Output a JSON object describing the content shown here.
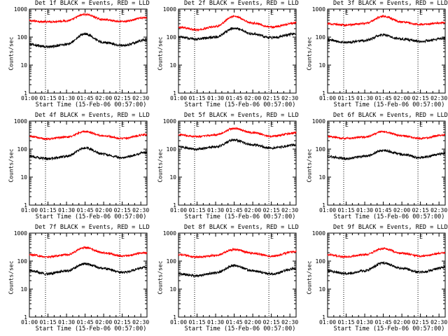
{
  "chart_data": [
    {
      "type": "line",
      "title": "Det 1f BLACK = Events, RED = LLD",
      "xlabel": "Start Time (15-Feb-06 00:57:00)",
      "ylabel": "Counts/sec",
      "xticks": [
        "01:00",
        "01:15",
        "01:30",
        "01:45",
        "02:00",
        "02:15",
        "02:30"
      ],
      "yticks": [
        "1",
        "10",
        "100",
        "1000"
      ],
      "ylim": [
        1,
        1000
      ],
      "yscale": "log",
      "xlim": [
        "01:00",
        "02:35"
      ],
      "markers": [
        "01:13",
        "02:13"
      ],
      "marker_labels": [
        "E",
        "E"
      ],
      "series": [
        {
          "name": "LLD",
          "color": "#ff0000",
          "x": [
            "01:00",
            "01:15",
            "01:30",
            "01:45",
            "02:00",
            "02:15",
            "02:35"
          ],
          "values": [
            380,
            350,
            380,
            650,
            420,
            360,
            500
          ]
        },
        {
          "name": "Events",
          "color": "#000000",
          "x": [
            "01:00",
            "01:15",
            "01:30",
            "01:45",
            "02:00",
            "02:15",
            "02:35"
          ],
          "values": [
            55,
            45,
            55,
            130,
            65,
            50,
            80
          ]
        }
      ]
    },
    {
      "type": "line",
      "title": "Det 2f BLACK = Events, RED = LLD",
      "xlabel": "Start Time (15-Feb-06 00:57:00)",
      "ylabel": "Counts/sec",
      "xticks": [
        "01:00",
        "01:15",
        "01:30",
        "01:45",
        "02:00",
        "02:15",
        "02:30"
      ],
      "yticks": [
        "1",
        "10",
        "100",
        "1000"
      ],
      "ylim": [
        1,
        1000
      ],
      "yscale": "log",
      "xlim": [
        "01:00",
        "02:35"
      ],
      "markers": [
        "01:13",
        "02:13"
      ],
      "marker_labels": [
        "E",
        "E"
      ],
      "series": [
        {
          "name": "LLD",
          "color": "#ff0000",
          "x": [
            "01:00",
            "01:15",
            "01:30",
            "01:45",
            "02:00",
            "02:15",
            "02:35"
          ],
          "values": [
            230,
            180,
            240,
            550,
            320,
            230,
            320
          ]
        },
        {
          "name": "Events",
          "color": "#000000",
          "x": [
            "01:00",
            "01:15",
            "01:30",
            "01:45",
            "02:00",
            "02:15",
            "02:35"
          ],
          "values": [
            100,
            85,
            100,
            210,
            130,
            95,
            130
          ]
        }
      ]
    },
    {
      "type": "line",
      "title": "Det 3f BLACK = Events, RED = LLD",
      "xlabel": "Start Time (15-Feb-06 00:57:00)",
      "ylabel": "Counts/sec",
      "xticks": [
        "01:00",
        "01:15",
        "01:30",
        "01:45",
        "02:00",
        "02:15",
        "02:30"
      ],
      "yticks": [
        "1",
        "10",
        "100",
        "1000"
      ],
      "ylim": [
        1,
        1000
      ],
      "yscale": "log",
      "xlim": [
        "01:00",
        "02:35"
      ],
      "markers": [
        "01:13",
        "02:13"
      ],
      "marker_labels": [
        "E",
        "E"
      ],
      "series": [
        {
          "name": "LLD",
          "color": "#ff0000",
          "x": [
            "01:00",
            "01:15",
            "01:30",
            "01:45",
            "02:00",
            "02:15",
            "02:35"
          ],
          "values": [
            300,
            270,
            310,
            550,
            350,
            280,
            330
          ]
        },
        {
          "name": "Events",
          "color": "#000000",
          "x": [
            "01:00",
            "01:15",
            "01:30",
            "01:45",
            "02:00",
            "02:15",
            "02:35"
          ],
          "values": [
            80,
            65,
            75,
            120,
            85,
            70,
            90
          ]
        }
      ]
    },
    {
      "type": "line",
      "title": "Det 4f BLACK = Events, RED = LLD",
      "xlabel": "Start Time (15-Feb-06 00:57:00)",
      "ylabel": "Counts/sec",
      "xticks": [
        "01:00",
        "01:15",
        "01:30",
        "01:45",
        "02:00",
        "02:15",
        "02:30"
      ],
      "yticks": [
        "1",
        "10",
        "100",
        "1000"
      ],
      "ylim": [
        1,
        1000
      ],
      "yscale": "log",
      "xlim": [
        "01:00",
        "02:35"
      ],
      "markers": [
        "01:13",
        "02:13"
      ],
      "marker_labels": [
        "E",
        "E"
      ],
      "series": [
        {
          "name": "LLD",
          "color": "#ff0000",
          "x": [
            "01:00",
            "01:15",
            "01:30",
            "01:45",
            "02:00",
            "02:15",
            "02:35"
          ],
          "values": [
            280,
            230,
            270,
            420,
            300,
            240,
            330
          ]
        },
        {
          "name": "Events",
          "color": "#000000",
          "x": [
            "01:00",
            "01:15",
            "01:30",
            "01:45",
            "02:00",
            "02:15",
            "02:35"
          ],
          "values": [
            55,
            45,
            55,
            110,
            65,
            50,
            75
          ]
        }
      ]
    },
    {
      "type": "line",
      "title": "Det 5f BLACK = Events, RED = LLD",
      "xlabel": "Start Time (15-Feb-06 00:57:00)",
      "ylabel": "Counts/sec",
      "xticks": [
        "01:00",
        "01:15",
        "01:30",
        "01:45",
        "02:00",
        "02:15",
        "02:30"
      ],
      "yticks": [
        "1",
        "10",
        "100",
        "1000"
      ],
      "ylim": [
        1,
        1000
      ],
      "yscale": "log",
      "xlim": [
        "01:00",
        "02:35"
      ],
      "markers": [
        "01:13",
        "02:13"
      ],
      "marker_labels": [
        "E",
        "E"
      ],
      "series": [
        {
          "name": "LLD",
          "color": "#ff0000",
          "x": [
            "01:00",
            "01:15",
            "01:30",
            "01:45",
            "02:00",
            "02:15",
            "02:35"
          ],
          "values": [
            330,
            280,
            320,
            550,
            380,
            290,
            380
          ]
        },
        {
          "name": "Events",
          "color": "#000000",
          "x": [
            "01:00",
            "01:15",
            "01:30",
            "01:45",
            "02:00",
            "02:15",
            "02:35"
          ],
          "values": [
            120,
            100,
            120,
            210,
            140,
            110,
            140
          ]
        }
      ]
    },
    {
      "type": "line",
      "title": "Det 6f BLACK = Events, RED = LLD",
      "xlabel": "Start Time (15-Feb-06 00:57:00)",
      "ylabel": "Counts/sec",
      "xticks": [
        "01:00",
        "01:15",
        "01:30",
        "01:45",
        "02:00",
        "02:15",
        "02:30"
      ],
      "yticks": [
        "1",
        "10",
        "100",
        "1000"
      ],
      "ylim": [
        1,
        1000
      ],
      "yscale": "log",
      "xlim": [
        "01:00",
        "02:35"
      ],
      "markers": [
        "01:13",
        "02:13"
      ],
      "marker_labels": [
        "E",
        "E"
      ],
      "series": [
        {
          "name": "LLD",
          "color": "#ff0000",
          "x": [
            "01:00",
            "01:15",
            "01:30",
            "01:45",
            "02:00",
            "02:15",
            "02:35"
          ],
          "values": [
            280,
            240,
            270,
            420,
            300,
            240,
            320
          ]
        },
        {
          "name": "Events",
          "color": "#000000",
          "x": [
            "01:00",
            "01:15",
            "01:30",
            "01:45",
            "02:00",
            "02:15",
            "02:35"
          ],
          "values": [
            55,
            45,
            55,
            90,
            65,
            50,
            70
          ]
        }
      ]
    },
    {
      "type": "line",
      "title": "Det 7f BLACK = Events, RED = LLD",
      "xlabel": "Start Time (15-Feb-06 00:57:00)",
      "ylabel": "Counts/sec",
      "xticks": [
        "01:00",
        "01:15",
        "01:30",
        "01:45",
        "02:00",
        "02:15",
        "02:30"
      ],
      "yticks": [
        "1",
        "10",
        "100",
        "1000"
      ],
      "ylim": [
        1,
        1000
      ],
      "yscale": "log",
      "xlim": [
        "01:00",
        "02:35"
      ],
      "markers": [
        "01:13",
        "02:13"
      ],
      "marker_labels": [
        "E",
        "E"
      ],
      "series": [
        {
          "name": "LLD",
          "color": "#ff0000",
          "x": [
            "01:00",
            "01:15",
            "01:30",
            "01:45",
            "02:00",
            "02:15",
            "02:35"
          ],
          "values": [
            170,
            140,
            170,
            300,
            200,
            150,
            200
          ]
        },
        {
          "name": "Events",
          "color": "#000000",
          "x": [
            "01:00",
            "01:15",
            "01:30",
            "01:45",
            "02:00",
            "02:15",
            "02:35"
          ],
          "values": [
            45,
            35,
            45,
            80,
            55,
            40,
            60
          ]
        }
      ]
    },
    {
      "type": "line",
      "title": "Det 8f BLACK = Events, RED = LLD",
      "xlabel": "Start Time (15-Feb-06 00:57:00)",
      "ylabel": "Counts/sec",
      "xticks": [
        "01:00",
        "01:15",
        "01:30",
        "01:45",
        "02:00",
        "02:15",
        "02:30"
      ],
      "yticks": [
        "1",
        "10",
        "100",
        "1000"
      ],
      "ylim": [
        1,
        1000
      ],
      "yscale": "log",
      "xlim": [
        "01:00",
        "02:35"
      ],
      "markers": [
        "01:13",
        "02:13"
      ],
      "marker_labels": [
        "E",
        "E"
      ],
      "series": [
        {
          "name": "LLD",
          "color": "#ff0000",
          "x": [
            "01:00",
            "01:15",
            "01:30",
            "01:45",
            "02:00",
            "02:15",
            "02:35"
          ],
          "values": [
            170,
            140,
            160,
            260,
            190,
            150,
            220
          ]
        },
        {
          "name": "Events",
          "color": "#000000",
          "x": [
            "01:00",
            "01:15",
            "01:30",
            "01:45",
            "02:00",
            "02:15",
            "02:35"
          ],
          "values": [
            35,
            30,
            38,
            70,
            45,
            35,
            55
          ]
        }
      ]
    },
    {
      "type": "line",
      "title": "Det 9f BLACK = Events, RED = LLD",
      "xlabel": "Start Time (15-Feb-06 00:57:00)",
      "ylabel": "Counts/sec",
      "xticks": [
        "01:00",
        "01:15",
        "01:30",
        "01:45",
        "02:00",
        "02:15",
        "02:30"
      ],
      "yticks": [
        "1",
        "10",
        "100",
        "1000"
      ],
      "ylim": [
        1,
        1000
      ],
      "yscale": "log",
      "xlim": [
        "01:00",
        "02:35"
      ],
      "markers": [
        "01:13",
        "02:13"
      ],
      "marker_labels": [
        "E",
        "E"
      ],
      "series": [
        {
          "name": "LLD",
          "color": "#ff0000",
          "x": [
            "01:00",
            "01:15",
            "01:30",
            "01:45",
            "02:00",
            "02:15",
            "02:35"
          ],
          "values": [
            170,
            140,
            170,
            280,
            190,
            150,
            200
          ]
        },
        {
          "name": "Events",
          "color": "#000000",
          "x": [
            "01:00",
            "01:15",
            "01:30",
            "01:45",
            "02:00",
            "02:15",
            "02:35"
          ],
          "values": [
            45,
            35,
            45,
            85,
            55,
            40,
            60
          ]
        }
      ]
    }
  ]
}
